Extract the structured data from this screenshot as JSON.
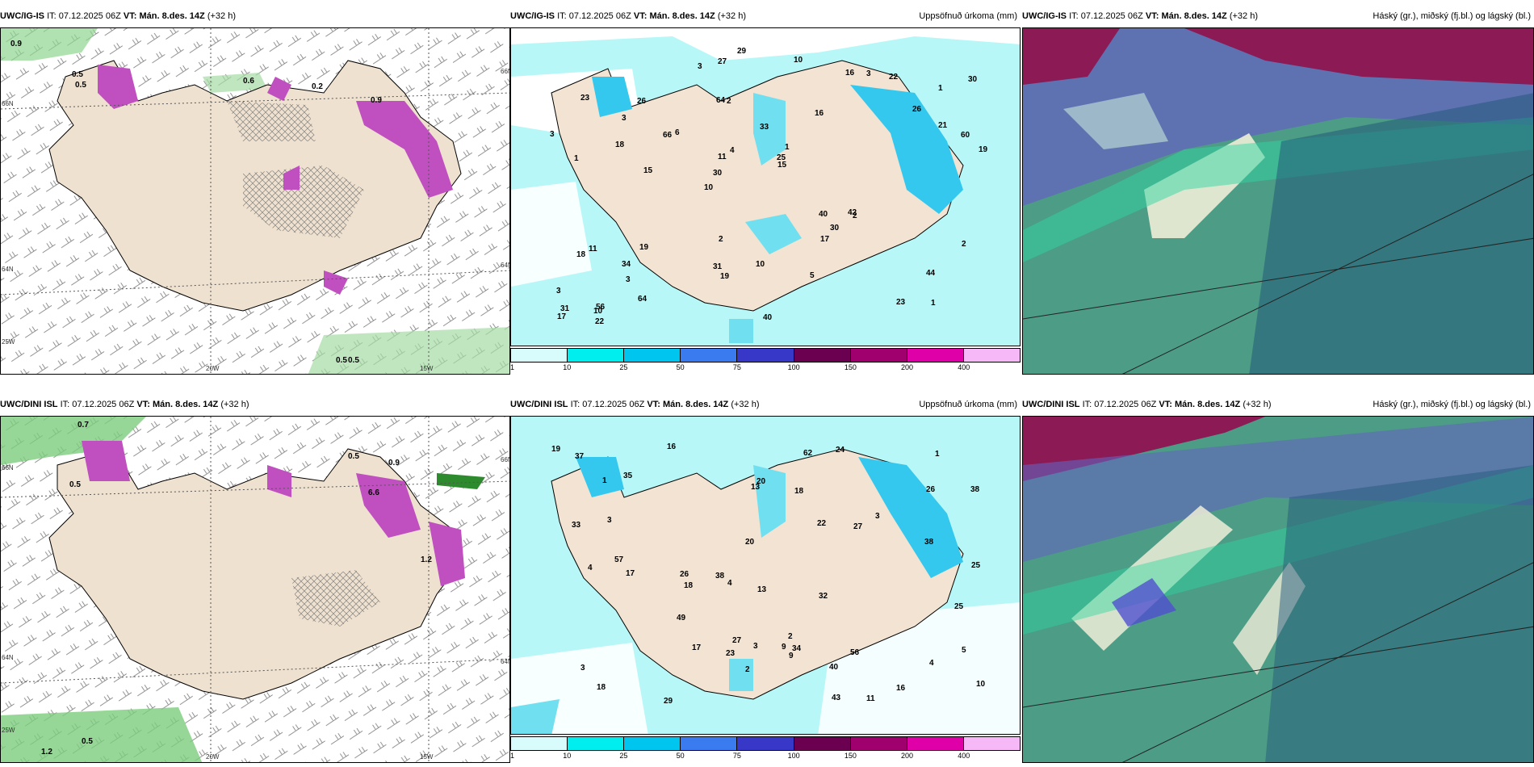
{
  "rows": [
    {
      "model": "UWC/IG-IS",
      "it_label": "IT:",
      "it_value": "07.12.2025 06Z",
      "vt_label": "VT:",
      "vt_value": "Mán. 8.des. 14Z",
      "lead": "(+32 h)",
      "precip_title": "Uppsöfnuð úrkoma (mm)",
      "cloud_title": "Háský (gr.), miðský (fj.bl.) og lágský (bl.)",
      "wind_values": [
        "0.9",
        "0.5",
        "0.5",
        "0.6",
        "0.2",
        "0.9",
        "0.5",
        "0.5"
      ],
      "precip_values": [
        "1",
        "1",
        "1",
        "10",
        "16",
        "56",
        "64",
        "33",
        "11",
        "6",
        "3",
        "3",
        "2",
        "1",
        "2",
        "23",
        "27",
        "19",
        "40",
        "21",
        "30",
        "31",
        "11",
        "26",
        "16",
        "19",
        "23",
        "44",
        "42",
        "40",
        "66",
        "18",
        "17",
        "64",
        "60",
        "25",
        "31",
        "19",
        "15",
        "18",
        "26",
        "30",
        "30",
        "5",
        "34",
        "22",
        "17",
        "10",
        "22",
        "29",
        "15",
        "3",
        "3",
        "3",
        "10",
        "10",
        "3",
        "4",
        "2",
        "2"
      ]
    },
    {
      "model": "UWC/DINI ISL",
      "it_label": "IT:",
      "it_value": "07.12.2025 06Z",
      "vt_label": "VT:",
      "vt_value": "Mán. 8.des. 14Z",
      "lead": "(+32 h)",
      "precip_title": "Uppsöfnuð úrkoma (mm)",
      "cloud_title": "Háský (gr.), miðský (fj.bl.) og lágský (bl.)",
      "wind_values": [
        "0.7",
        "1.2",
        "0.5",
        "0.5",
        "0.9",
        "6.6",
        "1.2",
        "0.5"
      ],
      "precip_values": [
        "4",
        "5",
        "2",
        "62",
        "56",
        "27",
        "11",
        "10",
        "35",
        "40",
        "57",
        "26",
        "24",
        "9",
        "27",
        "18",
        "13",
        "26",
        "17",
        "16",
        "38",
        "43",
        "49",
        "37",
        "23",
        "38",
        "20",
        "25",
        "18",
        "9",
        "34",
        "25",
        "22",
        "32",
        "17",
        "19",
        "20",
        "29",
        "33",
        "38",
        "18",
        "4",
        "3",
        "4",
        "2",
        "1",
        "3",
        "3",
        "1",
        "3",
        "13",
        "16"
      ]
    }
  ],
  "colorbar": {
    "ticks": [
      "1",
      "10",
      "25",
      "50",
      "75",
      "100",
      "150",
      "200",
      "400"
    ],
    "colors": [
      "#d8fbfb",
      "#00eeee",
      "#00c5ee",
      "#3a7cf0",
      "#3737c8",
      "#6b0050",
      "#a0006e",
      "#e000a8",
      "#f7b8f7"
    ]
  },
  "axes": {
    "lat_left": [
      "66N",
      "64N",
      "25W"
    ],
    "lon_bottom": [
      "20W",
      "15W"
    ],
    "lat_right": [
      "66N",
      "64N"
    ]
  }
}
